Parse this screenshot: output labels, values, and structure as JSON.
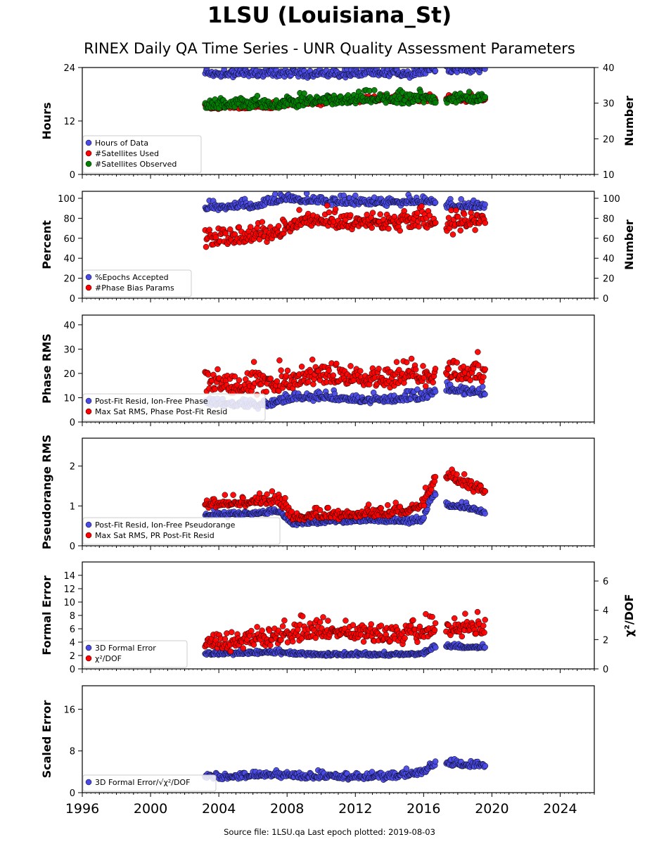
{
  "title": "1LSU (Louisiana_St)",
  "subtitle": "RINEX Daily QA Time Series - UNR Quality Assessment Parameters",
  "footer": "Source file: 1LSU.qa Last epoch plotted: 2019-08-03",
  "colors": {
    "blue": "#4a4ae6",
    "red": "#ff0000",
    "green": "#008000",
    "edge": "#000000"
  },
  "chart_data": [
    {
      "type": "scatter",
      "x_range": [
        1996,
        2026
      ],
      "x_ticks": [
        1996,
        2000,
        2004,
        2008,
        2012,
        2016,
        2020,
        2024
      ],
      "ylabel": "Hours",
      "ylim": [
        0,
        24
      ],
      "yticks": [
        0,
        12,
        24
      ],
      "y2label": "Number",
      "y2lim": [
        10,
        40
      ],
      "y2ticks": [
        10,
        20,
        30,
        40
      ],
      "legend_position": "lower-left",
      "series": [
        {
          "name": "Hours of Data",
          "color": "blue",
          "axis": "left",
          "x": [
            2003.2,
            2004.5,
            2006.0,
            2007.5,
            2009.0,
            2010.5,
            2012.0,
            2013.5,
            2015.0,
            2016.5,
            2017.5,
            2019.0,
            2019.6
          ],
          "y": [
            22.5,
            22.5,
            22.5,
            22.5,
            22.5,
            22.5,
            22.5,
            22.5,
            22.5,
            23.5,
            23.5,
            23.5,
            23.5
          ]
        },
        {
          "name": "#Satellites Used",
          "color": "red",
          "axis": "right",
          "x": [
            2003.2,
            2005.0,
            2007.0,
            2008.5,
            2010.0,
            2012.5,
            2014.0,
            2016.0,
            2016.6,
            2017.5,
            2019.6
          ],
          "y": [
            29,
            29,
            29,
            30,
            30,
            31,
            31,
            31,
            31,
            31,
            31
          ]
        },
        {
          "name": "#Satellites Observed",
          "color": "green",
          "axis": "right",
          "x": [
            2003.2,
            2005.0,
            2007.0,
            2008.5,
            2010.0,
            2012.5,
            2014.0,
            2016.0,
            2016.6,
            2017.5,
            2019.6
          ],
          "y": [
            29.5,
            29.5,
            29.5,
            30,
            30.5,
            31,
            31,
            31,
            31,
            31,
            31
          ]
        }
      ]
    },
    {
      "type": "scatter",
      "x_range": [
        1996,
        2026
      ],
      "x_ticks": [
        1996,
        2000,
        2004,
        2008,
        2012,
        2016,
        2020,
        2024
      ],
      "ylabel": "Percent",
      "ylim": [
        0,
        107
      ],
      "yticks": [
        0,
        20,
        40,
        60,
        80,
        100
      ],
      "y2label": "Number",
      "y2lim": [
        0,
        107
      ],
      "y2ticks": [
        0,
        20,
        40,
        60,
        80,
        100
      ],
      "legend_position": "lower-left",
      "series": [
        {
          "name": "%Epochs Accepted",
          "color": "blue",
          "axis": "left",
          "x": [
            2003.2,
            2004.5,
            2006.0,
            2007.0,
            2008.0,
            2009.0,
            2011.0,
            2013.0,
            2015.0,
            2016.5,
            2017.5,
            2019.6
          ],
          "y": [
            90,
            92,
            91,
            96,
            99,
            97,
            96,
            95,
            96,
            97,
            92,
            91
          ]
        },
        {
          "name": "#Phase Bias Params",
          "color": "red",
          "axis": "right",
          "x": [
            2003.2,
            2004.5,
            2006.0,
            2007.5,
            2008.5,
            2010.0,
            2011.5,
            2013.0,
            2014.5,
            2016.0,
            2016.6,
            2017.5,
            2019.6
          ],
          "y": [
            58,
            60,
            60,
            65,
            75,
            78,
            72,
            75,
            74,
            76,
            75,
            70,
            78
          ]
        }
      ]
    },
    {
      "type": "scatter",
      "x_range": [
        1996,
        2026
      ],
      "x_ticks": [
        1996,
        2000,
        2004,
        2008,
        2012,
        2016,
        2020,
        2024
      ],
      "ylabel": "Phase RMS",
      "ylim": [
        0,
        44
      ],
      "yticks": [
        0,
        10,
        20,
        30,
        40
      ],
      "legend_position": "lower-left",
      "series": [
        {
          "name": "Post-Fit Resid, Ion-Free Phase",
          "color": "blue",
          "axis": "left",
          "x": [
            2003.2,
            2005.0,
            2007.0,
            2008.5,
            2010.0,
            2012.0,
            2014.0,
            2016.0,
            2016.6,
            2017.5,
            2019.6
          ],
          "y": [
            8,
            7,
            7,
            10,
            10,
            9,
            9,
            10,
            12,
            13,
            12
          ]
        },
        {
          "name": "Max Sat RMS, Phase Post-Fit Resid",
          "color": "red",
          "axis": "left",
          "x": [
            2003.2,
            2005.0,
            2007.0,
            2008.5,
            2010.0,
            2012.0,
            2014.0,
            2016.0,
            2016.6,
            2017.5,
            2019.6
          ],
          "y": [
            15,
            15,
            15,
            17,
            18,
            18,
            17,
            18,
            20,
            20,
            19
          ]
        }
      ]
    },
    {
      "type": "scatter",
      "x_range": [
        1996,
        2026
      ],
      "x_ticks": [
        1996,
        2000,
        2004,
        2008,
        2012,
        2016,
        2020,
        2024
      ],
      "ylabel": "Pseudorange RMS",
      "ylim": [
        0,
        2.7
      ],
      "yticks": [
        0,
        1,
        2
      ],
      "legend_position": "lower-left",
      "series": [
        {
          "name": "Post-Fit Resid, Ion-Free Pseudorange",
          "color": "blue",
          "axis": "left",
          "x": [
            2003.2,
            2005.0,
            2006.5,
            2007.5,
            2008.3,
            2010.0,
            2012.0,
            2014.0,
            2015.5,
            2015.9,
            2016.6,
            2017.5,
            2018.5,
            2019.6
          ],
          "y": [
            0.75,
            0.78,
            0.82,
            0.85,
            0.55,
            0.58,
            0.62,
            0.62,
            0.6,
            0.62,
            1.3,
            1.0,
            0.95,
            0.83
          ]
        },
        {
          "name": "Max Sat RMS, PR Post-Fit Resid",
          "color": "red",
          "axis": "left",
          "x": [
            2003.2,
            2005.0,
            2006.5,
            2007.5,
            2008.3,
            2010.0,
            2012.0,
            2014.0,
            2015.5,
            2015.9,
            2016.6,
            2017.5,
            2018.5,
            2019.6
          ],
          "y": [
            1.0,
            1.05,
            1.1,
            1.12,
            0.7,
            0.75,
            0.78,
            0.8,
            0.9,
            1.0,
            1.6,
            1.75,
            1.5,
            1.35
          ]
        }
      ]
    },
    {
      "type": "scatter",
      "x_range": [
        1996,
        2026
      ],
      "x_ticks": [
        1996,
        2000,
        2004,
        2008,
        2012,
        2016,
        2020,
        2024
      ],
      "ylabel": "Formal Error",
      "ylim": [
        0,
        16
      ],
      "yticks": [
        0,
        2,
        4,
        6,
        8,
        10,
        12,
        14
      ],
      "y2label": "χ²/DOF",
      "y2lim": [
        0,
        7.3
      ],
      "y2ticks": [
        0,
        2,
        4,
        6
      ],
      "legend_position": "lower-left",
      "series": [
        {
          "name": "3D Formal Error",
          "color": "blue",
          "axis": "left",
          "x": [
            2003.2,
            2005.0,
            2007.0,
            2008.5,
            2010.0,
            2012.0,
            2014.0,
            2016.0,
            2016.6,
            2017.5,
            2019.6
          ],
          "y": [
            2.2,
            2.3,
            2.5,
            2.2,
            2.1,
            2.1,
            2.1,
            2.2,
            3.2,
            3.3,
            3.2
          ]
        },
        {
          "name": "χ²/DOF",
          "color": "red",
          "axis": "right",
          "x": [
            2003.2,
            2005.0,
            2007.0,
            2008.5,
            2010.0,
            2012.0,
            2014.0,
            2016.0,
            2016.6,
            2017.5,
            2019.6
          ],
          "y": [
            1.8,
            1.7,
            2.0,
            2.3,
            2.4,
            2.3,
            2.2,
            2.4,
            2.6,
            2.7,
            2.6
          ]
        }
      ]
    },
    {
      "type": "scatter",
      "x_range": [
        1996,
        2026
      ],
      "x_ticks": [
        1996,
        2000,
        2004,
        2008,
        2012,
        2016,
        2020,
        2024
      ],
      "ylabel": "Scaled Error",
      "ylim": [
        0,
        20.5
      ],
      "yticks": [
        0,
        8,
        16
      ],
      "legend_position": "lower-left",
      "series": [
        {
          "name": "3D Formal Error/√χ²/DOF",
          "color": "blue",
          "axis": "left",
          "x": [
            2003.2,
            2005.0,
            2007.0,
            2008.5,
            2010.0,
            2012.0,
            2014.0,
            2016.0,
            2016.6,
            2017.5,
            2019.6
          ],
          "y": [
            3.0,
            3.0,
            3.5,
            3.2,
            3.0,
            3.0,
            3.0,
            3.8,
            5.5,
            5.5,
            5.3
          ]
        }
      ]
    }
  ]
}
